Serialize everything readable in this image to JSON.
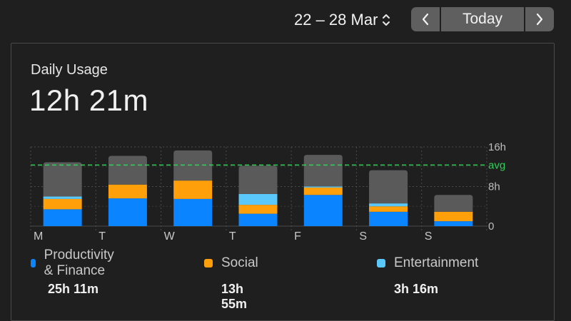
{
  "header": {
    "date_range": "22 – 28 Mar",
    "today_label": "Today"
  },
  "card": {
    "title": "Daily Usage",
    "total": "12h 21m"
  },
  "colors": {
    "productivity": "#0a84ff",
    "social": "#ff9f0a",
    "entertainment": "#5ac8fa",
    "other": "#5a5a5a",
    "avg_line": "#30d158"
  },
  "chart_data": {
    "type": "bar",
    "stacked": true,
    "categories": [
      "M",
      "T",
      "W",
      "T",
      "F",
      "S",
      "S"
    ],
    "y_ticks": [
      "16h",
      "8h",
      "0"
    ],
    "ylim": [
      0,
      16
    ],
    "avg_label": "avg",
    "avg_value": 12.35,
    "series": [
      {
        "name": "Productivity & Finance",
        "color": "#0a84ff",
        "values": [
          3.4,
          5.6,
          5.5,
          2.5,
          6.3,
          2.9,
          1.0
        ]
      },
      {
        "name": "Social",
        "color": "#ff9f0a",
        "values": [
          2.1,
          2.8,
          3.7,
          1.8,
          1.5,
          1.1,
          1.9
        ]
      },
      {
        "name": "Entertainment",
        "color": "#5ac8fa",
        "values": [
          0.5,
          0.0,
          0.0,
          2.2,
          0.2,
          0.6,
          0.0
        ]
      },
      {
        "color": "#5a5a5a",
        "values": [
          6.9,
          5.8,
          6.1,
          5.7,
          6.4,
          6.7,
          3.4
        ]
      }
    ]
  },
  "legend": [
    {
      "label": "Productivity & Finance",
      "value": "25h 11m",
      "color": "#0a84ff"
    },
    {
      "label": "Social",
      "value": "13h 55m",
      "color": "#ff9f0a"
    },
    {
      "label": "Entertainment",
      "value": "3h 16m",
      "color": "#5ac8fa"
    }
  ]
}
